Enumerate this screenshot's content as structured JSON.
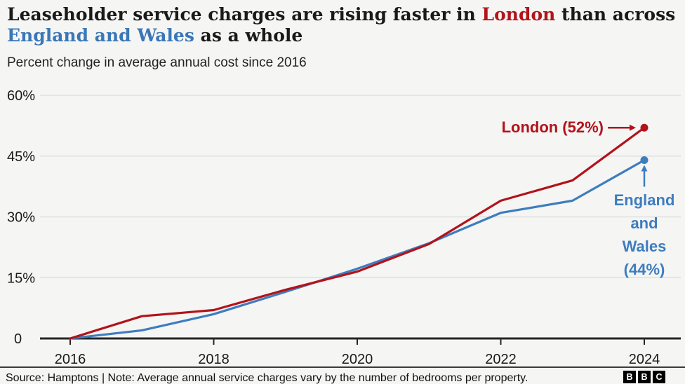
{
  "colors": {
    "background": "#f5f5f4",
    "text": "#1a1a1a",
    "grid": "#e0e0e0",
    "axis": "#262626",
    "london_red": "#b2131a",
    "ew_blue": "#3d7dbf",
    "title_red": "#b2141a",
    "title_blue": "#3a77b7"
  },
  "header": {
    "title_lines": [
      {
        "parts": [
          {
            "t": "Leaseholder service charges are rising faster in ",
            "c": "text"
          },
          {
            "t": "London",
            "c": "red"
          },
          {
            "t": " than across",
            "c": "text"
          }
        ]
      },
      {
        "parts": [
          {
            "t": "England and Wales",
            "c": "blue"
          },
          {
            "t": " as a whole",
            "c": "text"
          }
        ]
      }
    ],
    "subtitle": "Percent change in average annual cost since 2016"
  },
  "chart_data": {
    "type": "line",
    "title": "Leaseholder service charges are rising faster in London than across England and Wales as a whole",
    "subtitle": "Percent change in average annual cost since 2016",
    "x": [
      2016,
      2017,
      2018,
      2019,
      2020,
      2021,
      2022,
      2023,
      2024
    ],
    "series": [
      {
        "name": "England and Wales",
        "color_key": "ew_blue",
        "values": [
          0,
          2,
          6,
          11.5,
          17.2,
          23.5,
          31,
          34,
          44
        ],
        "final_value_label": "England and Wales (44%)"
      },
      {
        "name": "London",
        "color_key": "london_red",
        "values": [
          0,
          5.5,
          7,
          12,
          16.5,
          23.3,
          34,
          39,
          52
        ],
        "final_value_label": "London (52%)"
      }
    ],
    "y_ticks": [
      {
        "value": 0,
        "label": "0"
      },
      {
        "value": 15,
        "label": "15%"
      },
      {
        "value": 30,
        "label": "30%"
      },
      {
        "value": 45,
        "label": "45%"
      },
      {
        "value": 60,
        "label": "60%"
      }
    ],
    "x_ticks": [
      {
        "value": 2016,
        "label": "2016"
      },
      {
        "value": 2018,
        "label": "2018"
      },
      {
        "value": 2020,
        "label": "2020"
      },
      {
        "value": 2022,
        "label": "2022"
      },
      {
        "value": 2024,
        "label": "2024"
      }
    ],
    "ylim": [
      0,
      62
    ],
    "xlim": [
      2016,
      2024.5
    ],
    "grid": "horizontal",
    "legend": "end-of-line annotations"
  },
  "annotations": {
    "london_label": "London (52%)",
    "ew_lines": [
      "England",
      "and",
      "Wales",
      "(44%)"
    ]
  },
  "footer": {
    "text": "Source: Hamptons | Note: Average annual service charges vary by the number of bedrooms per property.",
    "logo_letters": [
      "B",
      "B",
      "C"
    ]
  }
}
